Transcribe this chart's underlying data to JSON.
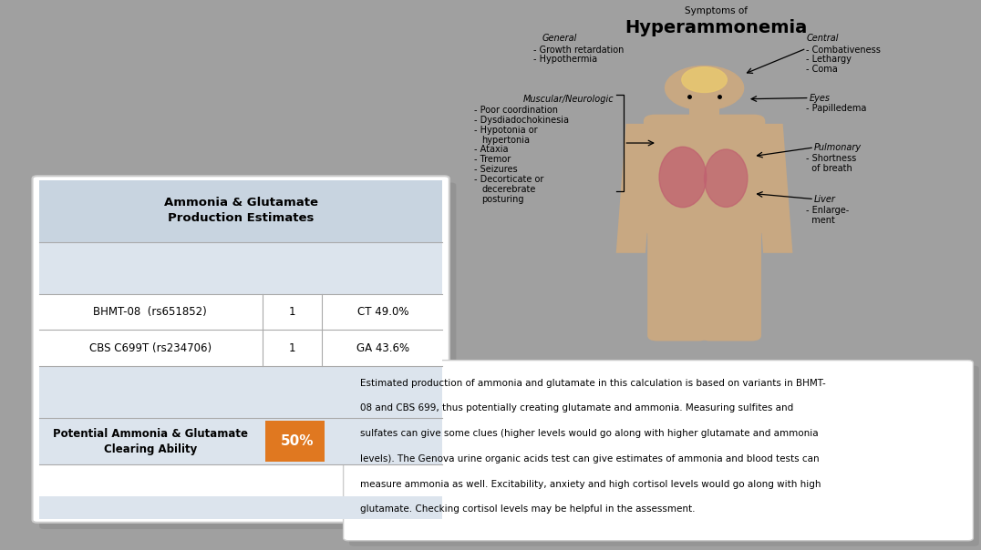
{
  "bg_color": "#a0a0a0",
  "title_top": "Symptoms of",
  "title_main": "Hyperammonemia",
  "table_title": "Ammonia & Glutamate\nProduction Estimates",
  "table_rows": [
    {
      "label": "BHMT-08  (rs651852)",
      "value": "1",
      "result": "CT 49.0%"
    },
    {
      "label": "CBS C699T (rs234706)",
      "value": "1",
      "result": "GA 43.6%"
    }
  ],
  "footer_label": "Potential Ammonia & Glutamate\nClearing Ability",
  "footer_value": "50%",
  "footer_color": "#e07820",
  "table_header_bg": "#c8d4e0",
  "table_row_bg": "#ffffff",
  "table_empty_bg": "#dce4ed",
  "note_lines": [
    "Estimated production of ammonia and glutamate in this calculation is based on variants in BHMT-",
    "08 and CBS 699, thus potentially creating glutamate and ammonia. Measuring sulfites and",
    "sulfates can give some clues (higher levels would go along with higher glutamate and ammonia",
    "levels). The Genova urine organic acids test can give estimates of ammonia and blood tests can",
    "measure ammonia as well. Excitability, anxiety and high cortisol levels would go along with high",
    "glutamate. Checking cortisol levels may be helpful in the assessment."
  ],
  "body_color": "#c8a882",
  "brain_color": "#e8c870",
  "lung_color": "#c06070"
}
